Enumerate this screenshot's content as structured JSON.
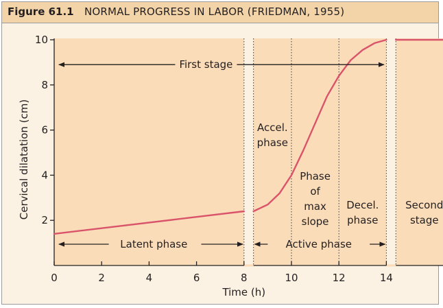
{
  "figure": {
    "label": "Figure 61.1",
    "title": "NORMAL PROGRESS IN LABOR (FRIEDMAN, 1955)"
  },
  "colors": {
    "header_bg": "#f3d3a8",
    "panel_bg": "#fbdcb8",
    "curve": "#d9536a",
    "ink": "#231f20"
  },
  "chart_data": {
    "type": "line",
    "title": "NORMAL PROGRESS IN LABOR (FRIEDMAN, 1955)",
    "xlabel": "Time (h)",
    "ylabel": "Cervical dilatation (cm)",
    "xlim": [
      0,
      16.8
    ],
    "ylim": [
      0,
      10
    ],
    "x_ticks": [
      0,
      2,
      4,
      6,
      8,
      10,
      12,
      14
    ],
    "x_tick_labels": [
      "0",
      "2",
      "4",
      "6",
      "8",
      "10",
      "12",
      "14"
    ],
    "y_ticks": [
      2,
      4,
      6,
      8,
      10
    ],
    "y_tick_labels": [
      "2",
      "4",
      "6",
      "8",
      "10"
    ],
    "series": [
      {
        "segment": "latent",
        "x": [
          0,
          8
        ],
        "y": [
          1.4,
          2.4
        ]
      },
      {
        "segment": "active",
        "x": [
          8.4,
          9,
          9.5,
          10,
          10.5,
          11,
          11.5,
          12,
          12.5,
          13,
          13.5,
          14
        ],
        "y": [
          2.4,
          2.7,
          3.2,
          4.0,
          5.1,
          6.3,
          7.5,
          8.4,
          9.1,
          9.55,
          9.85,
          10
        ]
      },
      {
        "segment": "second-stage",
        "x": [
          14.4,
          16.8
        ],
        "y": [
          10,
          10
        ]
      }
    ],
    "dotted_dividers_x": [
      8,
      10,
      12,
      14
    ],
    "annotations": {
      "first_stage": "First stage",
      "latent_phase": "Latent phase",
      "active_phase": "Active phase",
      "accel_phase": [
        "Accel.",
        "phase"
      ],
      "max_slope_phase": [
        "Phase",
        "of",
        "max",
        "slope"
      ],
      "decel_phase": [
        "Decel.",
        "phase"
      ],
      "second_stage": [
        "Second",
        "stage"
      ]
    }
  }
}
